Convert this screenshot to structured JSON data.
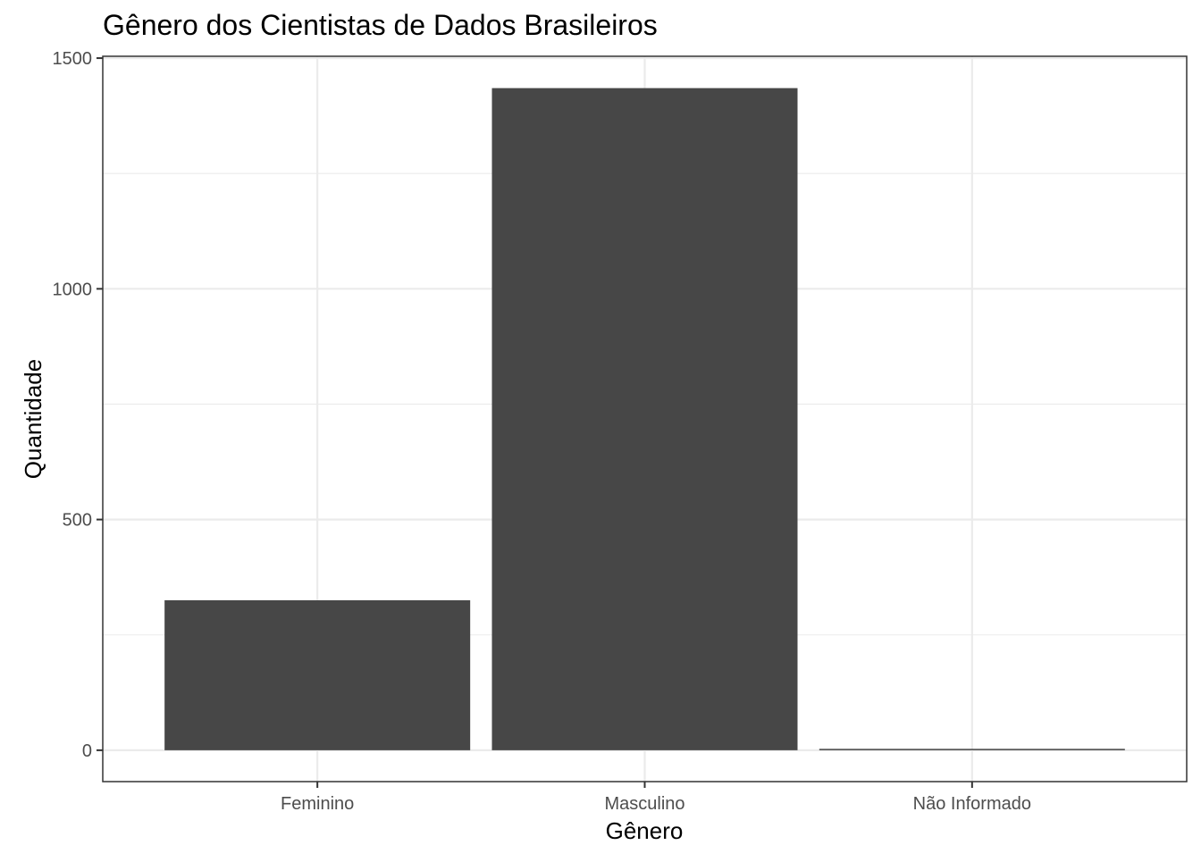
{
  "chart_data": {
    "type": "bar",
    "title": "Gênero dos Cientistas de Dados Brasileiros",
    "xlabel": "Gênero",
    "ylabel": "Quantidade",
    "categories": [
      "Feminino",
      "Masculino",
      "Não Informado"
    ],
    "values": [
      325,
      1435,
      3
    ],
    "ylim": [
      -68,
      1504
    ],
    "yticks": [
      0,
      500,
      1000,
      1500
    ],
    "ytick_labels": [
      "0",
      "500",
      "1000",
      "1500"
    ],
    "minor_yticks": [
      250,
      750,
      1250
    ],
    "grid": true,
    "legend": "none",
    "bar_color": "#474747",
    "panel_background": "#ffffff",
    "grid_color": "#ebebeb",
    "border_color": "#333333"
  }
}
